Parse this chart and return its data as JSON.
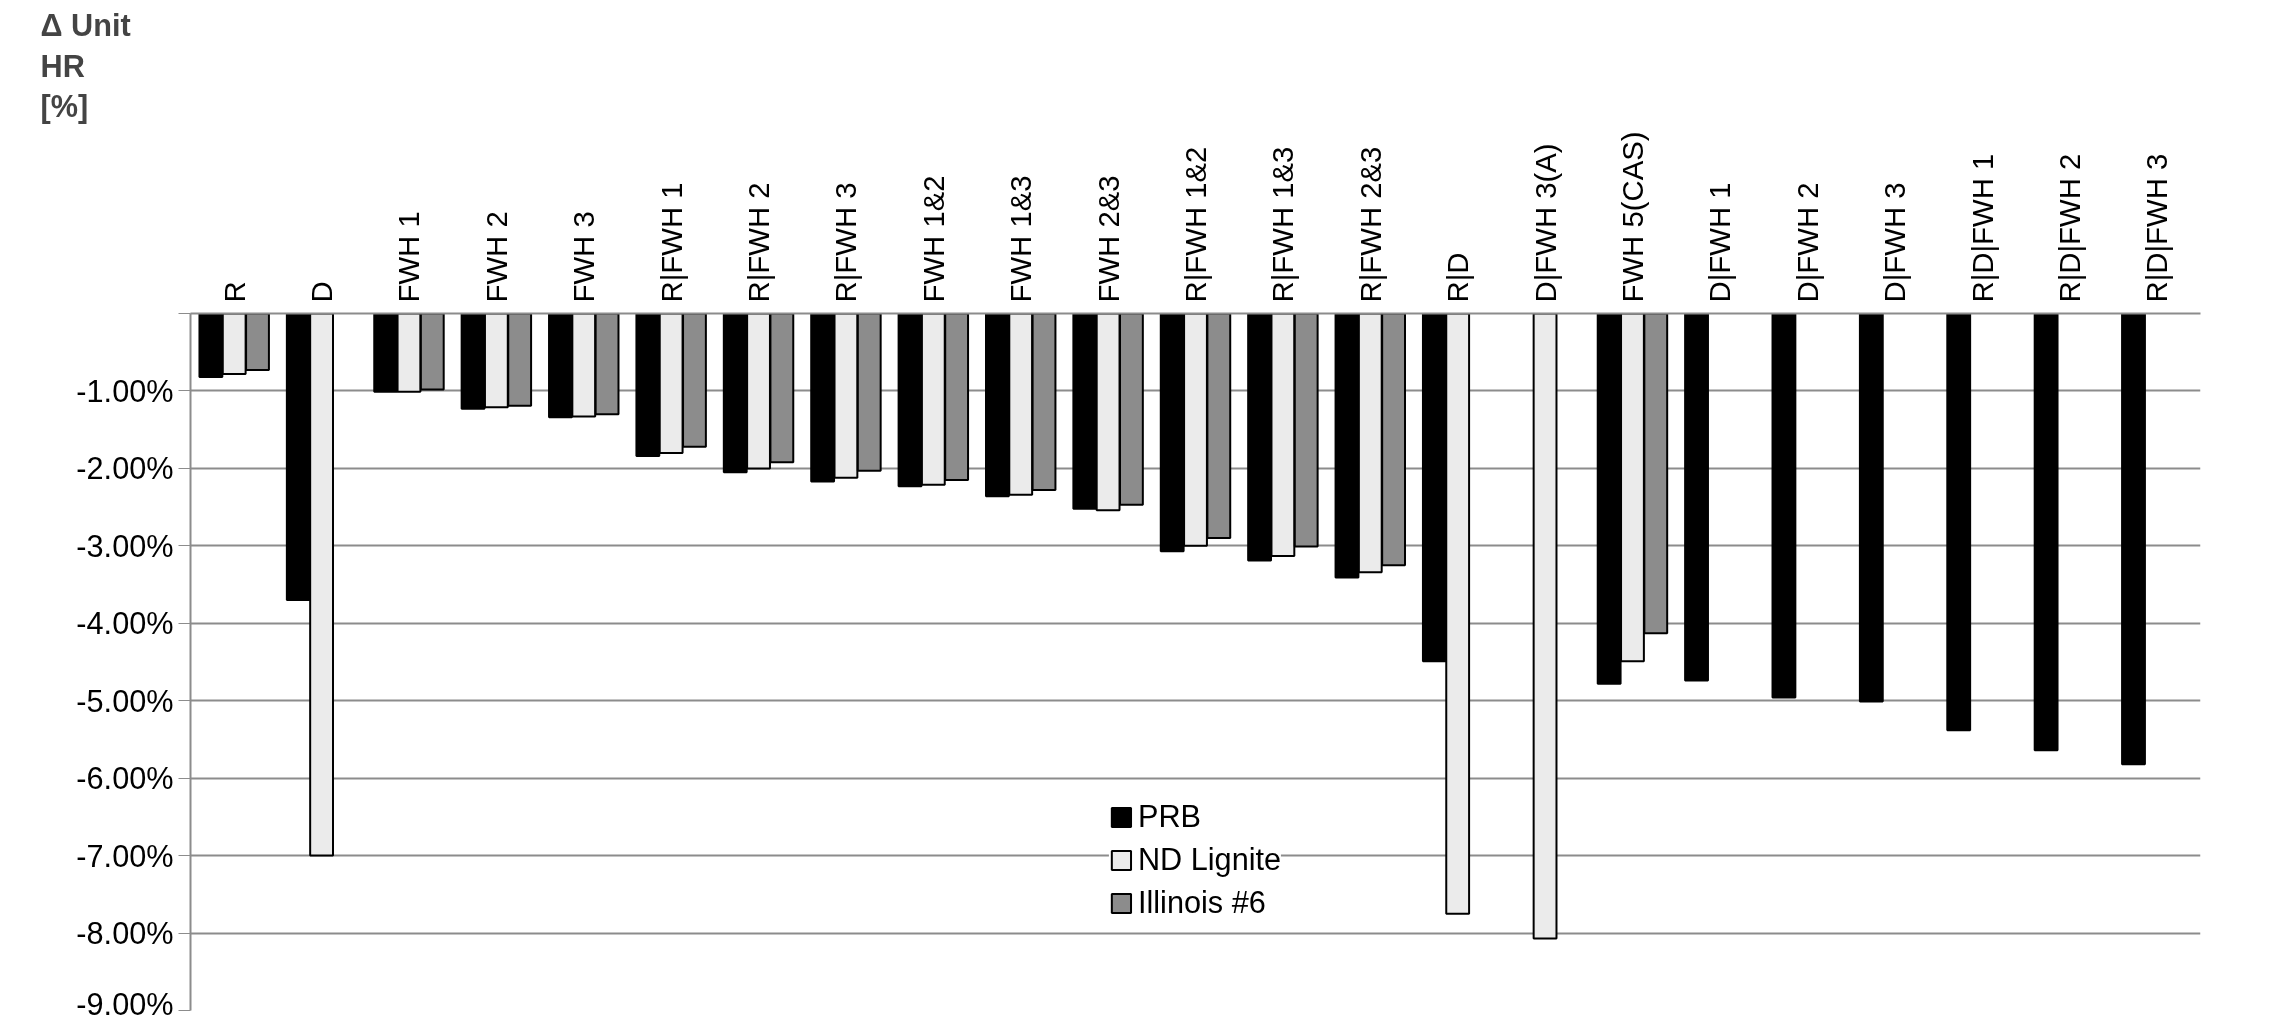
{
  "chart_data": {
    "type": "bar",
    "ylabel": "Δ Unit\nHR\n[%]",
    "categories": [
      "R",
      "D",
      "FWH 1",
      "FWH 2",
      "FWH 3",
      "R|FWH 1",
      "R|FWH 2",
      "R|FWH 3",
      "FWH 1&2",
      "FWH 1&3",
      "FWH 2&3",
      "R|FWH 1&2",
      "R|FWH 1&3",
      "R|FWH 2&3",
      "R|D",
      "D|FWH 3(A)",
      "FWH 5(CAS)",
      "D|FWH 1",
      "D|FWH 2",
      "D|FWH 3",
      "R|D|FWH 1",
      "R|D|FWH 2",
      "R|D|FWH 3"
    ],
    "series": [
      {
        "name": "PRB",
        "color": "#000000",
        "values": [
          -0.82,
          -3.7,
          -1.01,
          -1.23,
          -1.34,
          -1.84,
          -2.05,
          -2.17,
          -2.23,
          -2.36,
          -2.52,
          -3.07,
          -3.19,
          -3.41,
          -4.49,
          null,
          -4.78,
          -4.74,
          -4.96,
          -5.01,
          -5.38,
          -5.64,
          -5.82
        ]
      },
      {
        "name": "ND Lignite",
        "color": "#ebebeb",
        "values": [
          -0.78,
          -7.0,
          -1.01,
          -1.21,
          -1.33,
          -1.8,
          -2.0,
          -2.12,
          -2.21,
          -2.34,
          -2.54,
          -3.0,
          -3.13,
          -3.34,
          -7.75,
          -8.07,
          -4.49,
          null,
          null,
          null,
          null,
          null,
          null
        ]
      },
      {
        "name": "Illinois #6",
        "color": "#8c8c8c",
        "values": [
          -0.73,
          null,
          -0.98,
          -1.19,
          -1.3,
          -1.72,
          -1.92,
          -2.03,
          -2.15,
          -2.28,
          -2.47,
          -2.9,
          -3.01,
          -3.25,
          null,
          null,
          -4.13,
          null,
          null,
          null,
          null,
          null,
          null
        ]
      }
    ],
    "ylim": [
      -9,
      0
    ],
    "yticks": [
      {
        "value": 0,
        "label": null
      },
      {
        "value": -1,
        "label": "-1.00%"
      },
      {
        "value": -2,
        "label": "-2.00%"
      },
      {
        "value": -3,
        "label": "-3.00%"
      },
      {
        "value": -4,
        "label": "-4.00%"
      },
      {
        "value": -5,
        "label": "-5.00%"
      },
      {
        "value": -6,
        "label": "-6.00%"
      },
      {
        "value": -7,
        "label": "-7.00%"
      },
      {
        "value": -8,
        "label": "-8.00%"
      },
      {
        "value": -9,
        "label": "-9.00%"
      }
    ],
    "grid": "y",
    "legend": "bottom"
  }
}
